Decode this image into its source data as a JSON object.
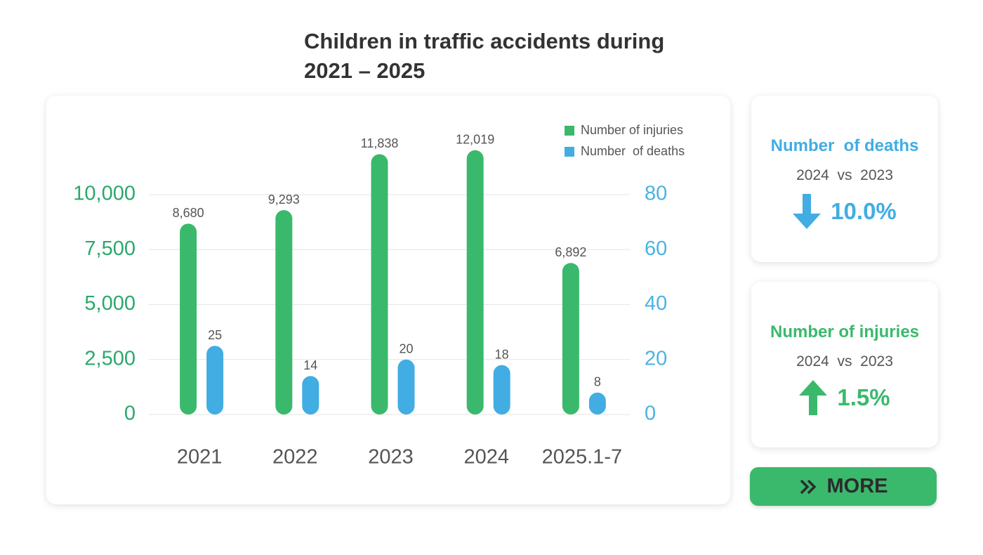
{
  "chart_data": {
    "type": "bar",
    "title": [
      "Children in traffic accidents during",
      "2021 – 2025"
    ],
    "categories": [
      "2021",
      "2022",
      "2023",
      "2024",
      "2025.1-7"
    ],
    "series": [
      {
        "name": "Number of injuries",
        "color": "#3ab96c",
        "values": [
          8680,
          9293,
          11838,
          12019,
          6892
        ],
        "value_labels": [
          "8,680",
          "9,293",
          "11,838",
          "12,019",
          "6,892"
        ]
      },
      {
        "name": "Number  of deaths",
        "color": "#41ade3",
        "axis": "y2",
        "values": [
          25,
          14,
          20,
          18,
          8
        ]
      }
    ],
    "ylim": [
      0,
      10000
    ],
    "yticks": [
      0,
      {
        "value": 2500,
        "label": "2,500"
      },
      {
        "value": 5000,
        "label": "5,000"
      },
      {
        "value": 7500,
        "label": "7,500"
      },
      {
        "value": 10000,
        "label": "10,000"
      }
    ],
    "y2lim": [
      0,
      80
    ],
    "y2ticks": [
      0,
      20,
      40,
      60,
      80
    ],
    "grid": true,
    "legend": "top-right"
  },
  "cards": [
    {
      "title": "Number  of deaths",
      "comparison": "2024  vs  2023",
      "change": "10.0%",
      "direction": "down",
      "color": "#41ade3"
    },
    {
      "title": "Number of injuries",
      "comparison": "2024  vs  2023",
      "change": "1.5%",
      "direction": "up",
      "color": "#3ab96c"
    }
  ],
  "button": {
    "label": "MORE"
  }
}
